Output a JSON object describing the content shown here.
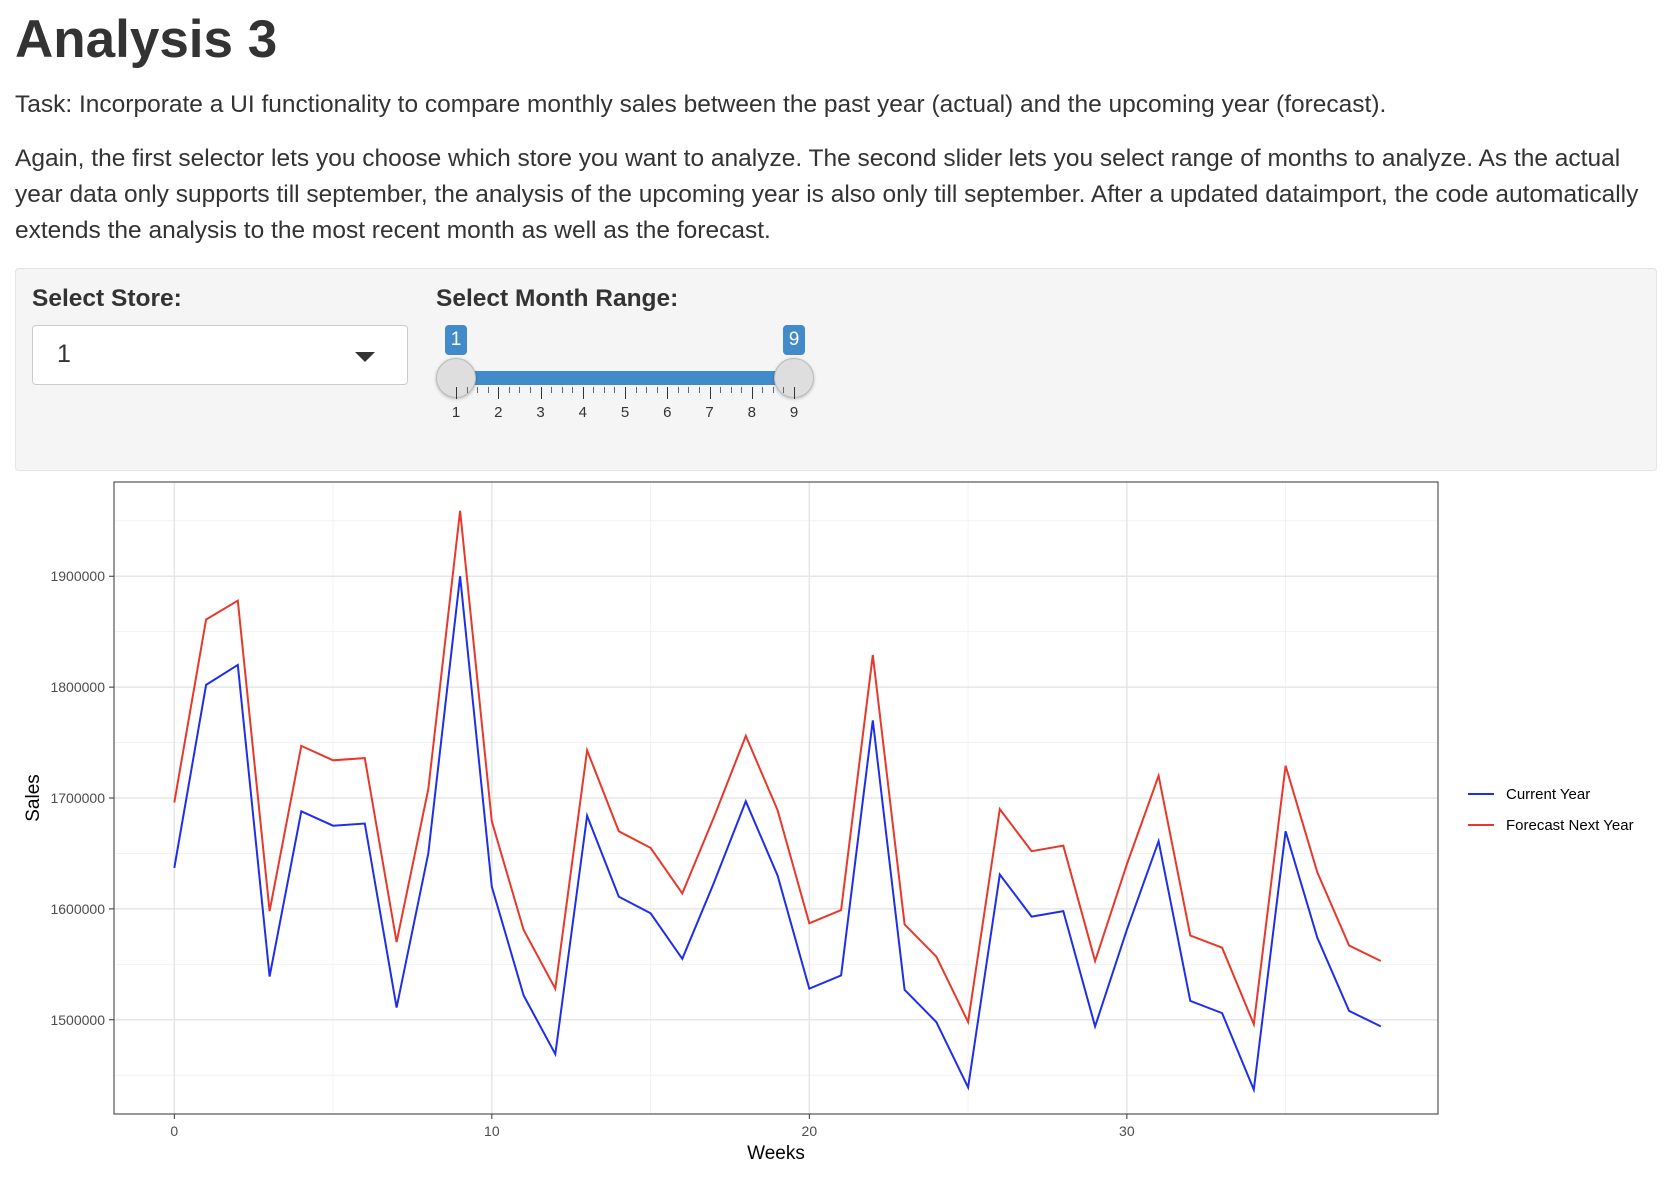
{
  "page": {
    "title": "Analysis 3",
    "task": "Task: Incorporate a UI functionality to compare monthly sales between the past year (actual) and the upcoming year (forecast).",
    "description": "Again, the first selector lets you choose which store you want to analyze. The second slider lets you select range of months to analyze. As the actual year data only supports till september, the analysis of the upcoming year is also only till september. After a updated dataimport, the code automatically extends the analysis to the most recent month as well as the forecast."
  },
  "controls": {
    "store": {
      "label": "Select Store:",
      "value": "1"
    },
    "month_range": {
      "label": "Select Month Range:",
      "min": 1,
      "max": 9,
      "from": 1,
      "to": 9,
      "from_label": "1",
      "to_label": "9",
      "ticks": [
        "1",
        "2",
        "3",
        "4",
        "5",
        "6",
        "7",
        "8",
        "9"
      ],
      "accent_color": "#428bca"
    }
  },
  "chart_data": {
    "type": "line",
    "title": "",
    "xlabel": "Weeks",
    "ylabel": "Sales",
    "xlim": [
      -1.9,
      39.8
    ],
    "ylim": [
      1415000,
      1985000
    ],
    "x_ticks": [
      0,
      10,
      20,
      30
    ],
    "x_tick_labels": [
      "0",
      "10",
      "20",
      "30"
    ],
    "y_ticks": [
      1500000,
      1600000,
      1700000,
      1800000,
      1900000
    ],
    "y_tick_labels": [
      "1500000",
      "1600000",
      "1700000",
      "1800000",
      "1900000"
    ],
    "grid": true,
    "legend_position": "right",
    "x": [
      0,
      1,
      2,
      3,
      4,
      5,
      6,
      7,
      8,
      9,
      10,
      11,
      12,
      13,
      14,
      15,
      16,
      17,
      18,
      19,
      20,
      21,
      22,
      23,
      24,
      25,
      26,
      27,
      28,
      29,
      30,
      31,
      32,
      33,
      34,
      35,
      36,
      37,
      38
    ],
    "series": [
      {
        "name": "Current Year",
        "color": "#1f2ee8",
        "values": [
          1637000,
          1802000,
          1820000,
          1539000,
          1688000,
          1675000,
          1677000,
          1511000,
          1650000,
          1900000,
          1620000,
          1522000,
          1469000,
          1684000,
          1611000,
          1596000,
          1555000,
          1624000,
          1697000,
          1630000,
          1528000,
          1540000,
          1770000,
          1527000,
          1498000,
          1439000,
          1631000,
          1593000,
          1598000,
          1494000,
          1581000,
          1661000,
          1517000,
          1506000,
          1437000,
          1670000,
          1574000,
          1508000,
          1494000
        ]
      },
      {
        "name": "Forecast Next Year",
        "color": "#e8382b",
        "values": [
          1696000,
          1861000,
          1878000,
          1598000,
          1747000,
          1734000,
          1736000,
          1570000,
          1708000,
          1959000,
          1679000,
          1581000,
          1528000,
          1743000,
          1670000,
          1655000,
          1614000,
          1683000,
          1756000,
          1689000,
          1587000,
          1599000,
          1829000,
          1586000,
          1557000,
          1498000,
          1690000,
          1652000,
          1657000,
          1553000,
          1640000,
          1720000,
          1576000,
          1565000,
          1496000,
          1729000,
          1633000,
          1567000,
          1553000
        ]
      }
    ]
  }
}
